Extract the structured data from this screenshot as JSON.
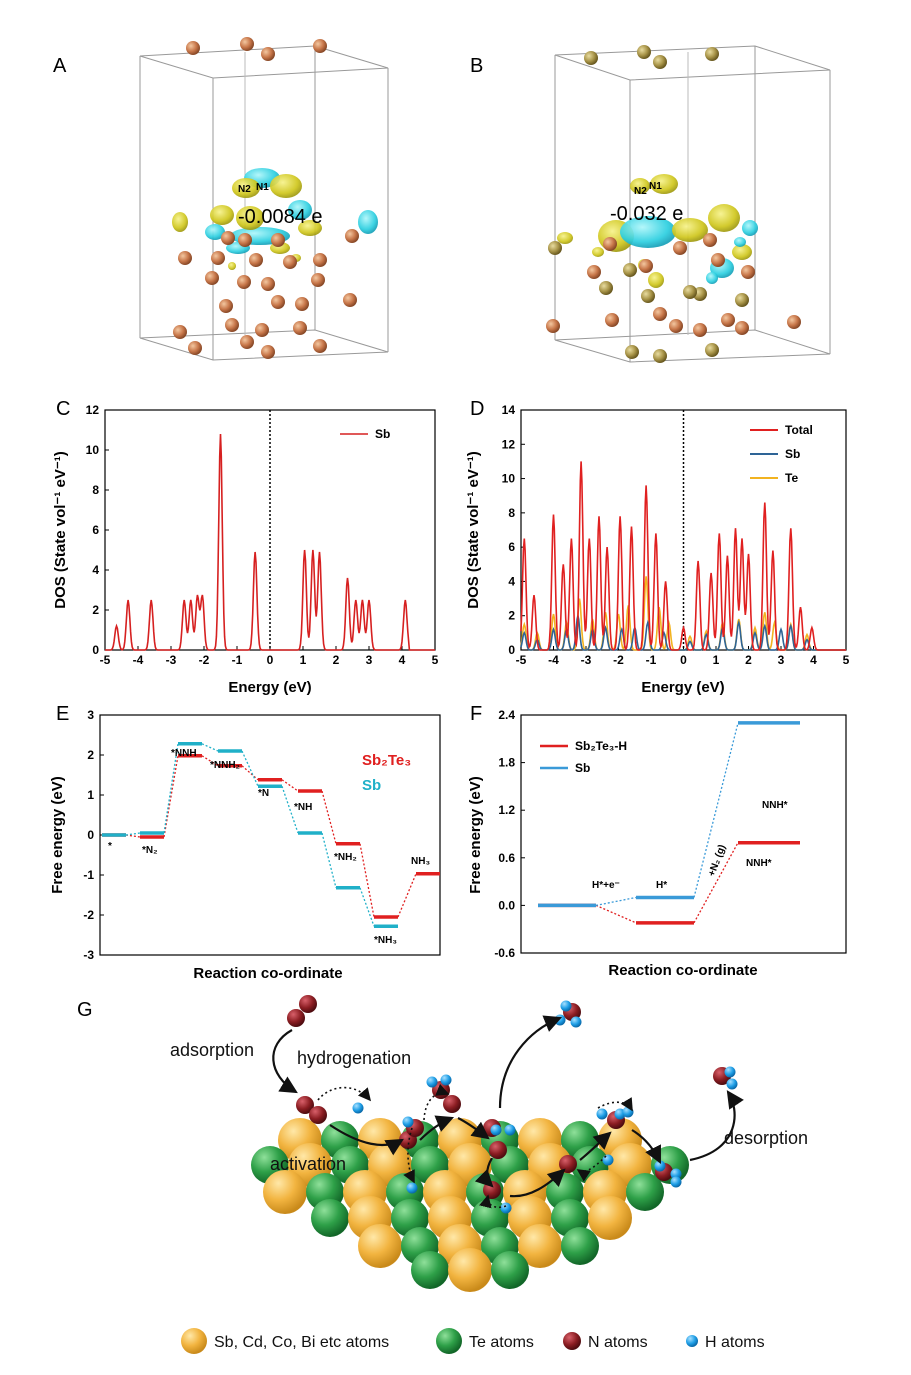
{
  "panels": {
    "A": {
      "label": "A",
      "charge": "-0.0084 e",
      "atoms": [
        "N2",
        "N1"
      ]
    },
    "B": {
      "label": "B",
      "charge": "-0.032 e",
      "atoms": [
        "N2",
        "N1"
      ]
    },
    "G": {
      "label": "G"
    }
  },
  "chart_data": [
    {
      "panel": "C",
      "type": "line",
      "xlabel": "Energy (eV)",
      "ylabel": "DOS (State vol⁻¹ eV⁻¹)",
      "xlim": [
        -5,
        5
      ],
      "ylim": [
        0,
        12
      ],
      "xticks": [
        -5,
        -4,
        -3,
        -2,
        -1,
        0,
        1,
        2,
        3,
        4,
        5
      ],
      "yticks": [
        0,
        2,
        4,
        6,
        8,
        10,
        12
      ],
      "legend": "top-right",
      "fermi_line_at": 0,
      "series": [
        {
          "name": "Sb",
          "color": "#d62020",
          "peaks": [
            [
              -4.65,
              1.2
            ],
            [
              -4.3,
              2.5
            ],
            [
              -3.6,
              2.5
            ],
            [
              -2.6,
              2.5
            ],
            [
              -2.4,
              2.5
            ],
            [
              -2.2,
              2.7
            ],
            [
              -2.05,
              2.7
            ],
            [
              -1.5,
              10.8
            ],
            [
              -0.45,
              4.9
            ],
            [
              1.05,
              5.0
            ],
            [
              1.3,
              5.0
            ],
            [
              1.5,
              4.9
            ],
            [
              2.35,
              3.6
            ],
            [
              2.6,
              2.5
            ],
            [
              2.8,
              2.5
            ],
            [
              3.0,
              2.5
            ],
            [
              4.1,
              2.5
            ],
            [
              4.35,
              2.4
            ]
          ]
        }
      ]
    },
    {
      "panel": "D",
      "type": "line",
      "xlabel": "Energy (eV)",
      "ylabel": "DOS (State vol⁻¹ eV⁻¹)",
      "xlim": [
        -5,
        5
      ],
      "ylim": [
        0,
        14
      ],
      "xticks": [
        -5,
        -4,
        -3,
        -2,
        -1,
        0,
        1,
        2,
        3,
        4,
        5
      ],
      "yticks": [
        0,
        2,
        4,
        6,
        8,
        10,
        12,
        14
      ],
      "legend": "top-right",
      "fermi_line_at": 0,
      "series": [
        {
          "name": "Total",
          "color": "#e02020",
          "peaks": [
            [
              -4.9,
              6.5
            ],
            [
              -4.6,
              3.2
            ],
            [
              -4.0,
              7.9
            ],
            [
              -3.7,
              5.0
            ],
            [
              -3.45,
              6.5
            ],
            [
              -3.15,
              11.0
            ],
            [
              -2.9,
              6.5
            ],
            [
              -2.6,
              7.8
            ],
            [
              -2.35,
              6.0
            ],
            [
              -1.95,
              7.8
            ],
            [
              -1.6,
              7.2
            ],
            [
              -1.15,
              9.6
            ],
            [
              -0.85,
              6.8
            ],
            [
              -0.55,
              4.0
            ],
            [
              0.0,
              1.3
            ],
            [
              0.45,
              5.2
            ],
            [
              0.85,
              4.5
            ],
            [
              1.1,
              6.8
            ],
            [
              1.35,
              5.5
            ],
            [
              1.6,
              7.1
            ],
            [
              1.8,
              6.5
            ],
            [
              2.0,
              5.6
            ],
            [
              2.5,
              8.6
            ],
            [
              2.75,
              5.8
            ],
            [
              3.3,
              7.1
            ],
            [
              3.6,
              2.5
            ],
            [
              3.95,
              1.3
            ]
          ]
        },
        {
          "name": "Sb",
          "color": "#2e6496",
          "peaks": [
            [
              -4.9,
              1.0
            ],
            [
              -4.5,
              0.6
            ],
            [
              -4.0,
              1.2
            ],
            [
              -3.6,
              1.2
            ],
            [
              -3.25,
              2.0
            ],
            [
              -2.8,
              1.2
            ],
            [
              -2.4,
              1.3
            ],
            [
              -1.9,
              1.2
            ],
            [
              -1.5,
              1.3
            ],
            [
              -1.1,
              1.6
            ],
            [
              -0.6,
              1.0
            ],
            [
              0.2,
              0.5
            ],
            [
              0.7,
              0.9
            ],
            [
              1.2,
              1.3
            ],
            [
              1.7,
              1.6
            ],
            [
              2.2,
              1.0
            ],
            [
              2.5,
              1.4
            ],
            [
              3.0,
              1.2
            ],
            [
              3.3,
              1.4
            ],
            [
              3.8,
              0.6
            ]
          ]
        },
        {
          "name": "Te",
          "color": "#f2b320",
          "peaks": [
            [
              -4.9,
              1.5
            ],
            [
              -4.5,
              1.0
            ],
            [
              -4.0,
              2.1
            ],
            [
              -3.6,
              1.6
            ],
            [
              -3.2,
              3.0
            ],
            [
              -2.8,
              1.8
            ],
            [
              -2.4,
              2.2
            ],
            [
              -2.0,
              2.1
            ],
            [
              -1.7,
              2.6
            ],
            [
              -1.15,
              4.3
            ],
            [
              -0.75,
              2.5
            ],
            [
              -0.45,
              1.6
            ],
            [
              0.2,
              0.8
            ],
            [
              0.7,
              1.1
            ],
            [
              1.2,
              1.6
            ],
            [
              1.7,
              1.8
            ],
            [
              2.2,
              1.3
            ],
            [
              2.5,
              2.2
            ],
            [
              2.8,
              1.6
            ],
            [
              3.3,
              1.5
            ],
            [
              3.8,
              0.9
            ]
          ]
        }
      ]
    },
    {
      "panel": "E",
      "type": "line",
      "xlabel": "Reaction co-ordinate",
      "ylabel": "Free energy (eV)",
      "ylim": [
        -3,
        3
      ],
      "yticks": [
        -3,
        -2,
        -1,
        0,
        1,
        2,
        3
      ],
      "series": [
        {
          "name": "Sb₂Te₃",
          "color": "#e02020",
          "values": [
            0,
            -0.05,
            1.98,
            1.73,
            1.38,
            1.1,
            -0.22,
            -2.05,
            -0.97
          ]
        },
        {
          "name": "Sb",
          "color": "#20b0c8",
          "values": [
            0,
            0.05,
            2.28,
            2.1,
            1.22,
            0.05,
            -1.32,
            -2.28
          ]
        }
      ],
      "annotations": [
        "*",
        "*N₂",
        "*NNH",
        "*NNH₂",
        "*N",
        "*NH",
        "*NH₂",
        "*NH₃",
        "NH₃"
      ]
    },
    {
      "panel": "F",
      "type": "line",
      "xlabel": "Reaction co-ordinate",
      "ylabel": "Free energy (eV)",
      "ylim": [
        -0.6,
        2.4
      ],
      "yticks": [
        -0.6,
        0.0,
        0.6,
        1.2,
        1.8,
        2.4
      ],
      "series": [
        {
          "name": "Sb₂Te₃-H",
          "color": "#e02020",
          "values": [
            0,
            -0.22,
            0.79
          ]
        },
        {
          "name": "Sb",
          "color": "#3a9ad8",
          "values": [
            0,
            0.1,
            2.3
          ]
        }
      ],
      "annotations": [
        "H*+e⁻",
        "H*",
        "+N₂ (g)",
        "NNH*",
        "NNH*"
      ]
    }
  ],
  "scheme": {
    "labels": [
      "adsorption",
      "hydrogenation",
      "activation",
      "desorption"
    ],
    "key": [
      "Sb, Cd, Co, Bi etc atoms",
      "Te atoms",
      "N atoms",
      "H atoms"
    ],
    "colors": {
      "gold": "#f2b440",
      "green": "#2ea048",
      "n": "#8b1d22",
      "h": "#1e9ee6"
    }
  }
}
